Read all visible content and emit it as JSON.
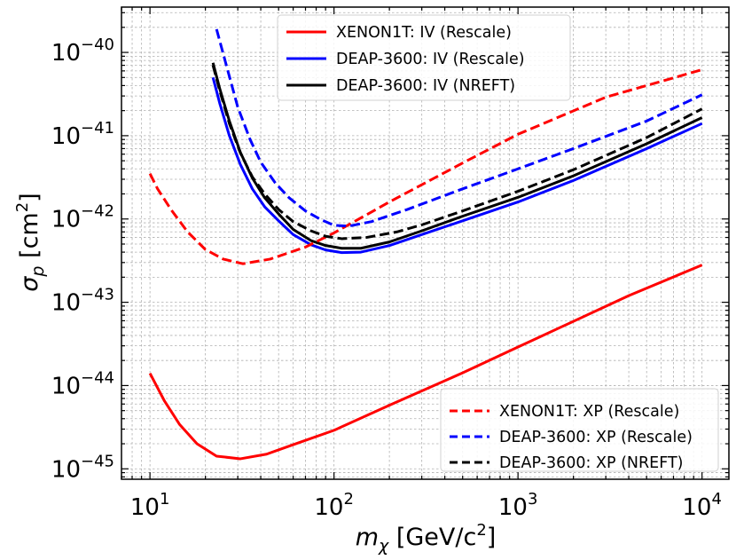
{
  "chart_data": {
    "type": "line",
    "xscale": "log",
    "yscale": "log",
    "xlim": [
      7,
      14000
    ],
    "ylim": [
      7.5e-46,
      3.5e-40
    ],
    "xlabel": {
      "base": "m",
      "sub": "χ",
      "unit_prefix": " [GeV/c",
      "unit_sup": "2",
      "unit_suffix": "]"
    },
    "ylabel": {
      "base": "σ",
      "sub": "p",
      "unit_prefix": " [cm",
      "unit_sup": "2",
      "unit_suffix": "]"
    },
    "xticks": [
      {
        "value": 10,
        "base": "10",
        "exp": "1"
      },
      {
        "value": 100,
        "base": "10",
        "exp": "2"
      },
      {
        "value": 1000,
        "base": "10",
        "exp": "3"
      },
      {
        "value": 10000,
        "base": "10",
        "exp": "4"
      }
    ],
    "yticks": [
      {
        "value": 1e-45,
        "base": "10",
        "exp": "−45"
      },
      {
        "value": 1e-44,
        "base": "10",
        "exp": "−44"
      },
      {
        "value": 1e-43,
        "base": "10",
        "exp": "−43"
      },
      {
        "value": 1e-42,
        "base": "10",
        "exp": "−42"
      },
      {
        "value": 1e-41,
        "base": "10",
        "exp": "−41"
      },
      {
        "value": 1e-40,
        "base": "10",
        "exp": "−40"
      }
    ],
    "grid": true,
    "legends": [
      {
        "placement": "upper-center",
        "entries": [
          0,
          1,
          2
        ]
      },
      {
        "placement": "lower-right",
        "entries": [
          3,
          4,
          5
        ]
      }
    ],
    "series": [
      {
        "name": "XENON1T: IV (Rescale)",
        "color": "#ff0000",
        "dash": "solid",
        "points": [
          [
            10,
            1.4e-44
          ],
          [
            12,
            6.5e-45
          ],
          [
            14.5,
            3.4e-45
          ],
          [
            18,
            2e-45
          ],
          [
            23,
            1.42e-45
          ],
          [
            31,
            1.32e-45
          ],
          [
            43,
            1.5e-45
          ],
          [
            60,
            1.95e-45
          ],
          [
            100,
            2.9e-45
          ],
          [
            200,
            5.8e-45
          ],
          [
            500,
            1.42e-44
          ],
          [
            1000,
            2.9e-44
          ],
          [
            4000,
            1.2e-43
          ],
          [
            10000,
            2.8e-43
          ]
        ]
      },
      {
        "name": "DEAP-3600: IV (Rescale)",
        "color": "#0000ff",
        "dash": "solid",
        "points": [
          [
            22,
            5e-41
          ],
          [
            24,
            2.4e-41
          ],
          [
            27,
            1e-41
          ],
          [
            31,
            4.5e-42
          ],
          [
            36,
            2.3e-42
          ],
          [
            42,
            1.4e-42
          ],
          [
            50,
            9.5e-43
          ],
          [
            60,
            6.5e-43
          ],
          [
            75,
            4.9e-43
          ],
          [
            90,
            4.25e-43
          ],
          [
            110,
            3.95e-43
          ],
          [
            140,
            4e-43
          ],
          [
            200,
            4.8e-43
          ],
          [
            300,
            6.5e-43
          ],
          [
            500,
            9.5e-43
          ],
          [
            1000,
            1.6e-42
          ],
          [
            2000,
            2.9e-42
          ],
          [
            5000,
            7e-42
          ],
          [
            10000,
            1.4e-41
          ]
        ]
      },
      {
        "name": "DEAP-3600: IV (NREFT)",
        "color": "#000000",
        "dash": "solid",
        "points": [
          [
            22,
            7.5e-41
          ],
          [
            24,
            3.6e-41
          ],
          [
            27,
            1.5e-41
          ],
          [
            31,
            6.3e-42
          ],
          [
            36,
            3.1e-42
          ],
          [
            42,
            1.8e-42
          ],
          [
            50,
            1.15e-42
          ],
          [
            60,
            7.5e-43
          ],
          [
            75,
            5.5e-43
          ],
          [
            90,
            4.8e-43
          ],
          [
            110,
            4.45e-43
          ],
          [
            140,
            4.45e-43
          ],
          [
            200,
            5.3e-43
          ],
          [
            300,
            7.2e-43
          ],
          [
            500,
            1.08e-42
          ],
          [
            1000,
            1.82e-42
          ],
          [
            2000,
            3.3e-42
          ],
          [
            5000,
            8e-42
          ],
          [
            10000,
            1.65e-41
          ]
        ]
      },
      {
        "name": "XENON1T: XP (Rescale)",
        "color": "#ff0000",
        "dash": "dashed",
        "points": [
          [
            10,
            3.5e-42
          ],
          [
            11,
            2.3e-42
          ],
          [
            13,
            1.3e-42
          ],
          [
            16,
            7e-43
          ],
          [
            20,
            4.3e-43
          ],
          [
            25,
            3.3e-43
          ],
          [
            32,
            2.9e-43
          ],
          [
            45,
            3.3e-43
          ],
          [
            70,
            4.6e-43
          ],
          [
            100,
            6.8e-43
          ],
          [
            200,
            1.6e-42
          ],
          [
            500,
            4.7e-42
          ],
          [
            1000,
            1.04e-41
          ],
          [
            3000,
            2.9e-41
          ],
          [
            10000,
            6.2e-41
          ]
        ]
      },
      {
        "name": "DEAP-3600: XP (Rescale)",
        "color": "#0000ff",
        "dash": "dashed",
        "points": [
          [
            23,
            1.9e-40
          ],
          [
            26,
            7e-41
          ],
          [
            30,
            2.2e-41
          ],
          [
            35,
            9e-42
          ],
          [
            40,
            4.8e-42
          ],
          [
            48,
            2.7e-42
          ],
          [
            57,
            1.8e-42
          ],
          [
            70,
            1.25e-42
          ],
          [
            85,
            9.8e-43
          ],
          [
            100,
            8.4e-43
          ],
          [
            120,
            8.2e-43
          ],
          [
            160,
            9.3e-43
          ],
          [
            250,
            1.3e-42
          ],
          [
            500,
            2.3e-42
          ],
          [
            1000,
            4e-42
          ],
          [
            2000,
            7e-42
          ],
          [
            5000,
            1.5e-41
          ],
          [
            10000,
            3.1e-41
          ]
        ]
      },
      {
        "name": "DEAP-3600: XP (NREFT)",
        "color": "#000000",
        "dash": "dashed",
        "points": [
          [
            22,
            7e-41
          ],
          [
            24,
            3.4e-41
          ],
          [
            27,
            1.4e-41
          ],
          [
            31,
            6.2e-42
          ],
          [
            36,
            3.2e-42
          ],
          [
            42,
            2e-42
          ],
          [
            50,
            1.3e-42
          ],
          [
            60,
            9.3e-43
          ],
          [
            75,
            7.2e-43
          ],
          [
            90,
            6.2e-43
          ],
          [
            110,
            5.8e-43
          ],
          [
            150,
            6e-43
          ],
          [
            220,
            7e-43
          ],
          [
            300,
            8.5e-43
          ],
          [
            500,
            1.25e-42
          ],
          [
            1000,
            2.15e-42
          ],
          [
            2000,
            3.9e-42
          ],
          [
            5000,
            9.5e-42
          ],
          [
            10000,
            2.1e-41
          ]
        ]
      }
    ]
  }
}
